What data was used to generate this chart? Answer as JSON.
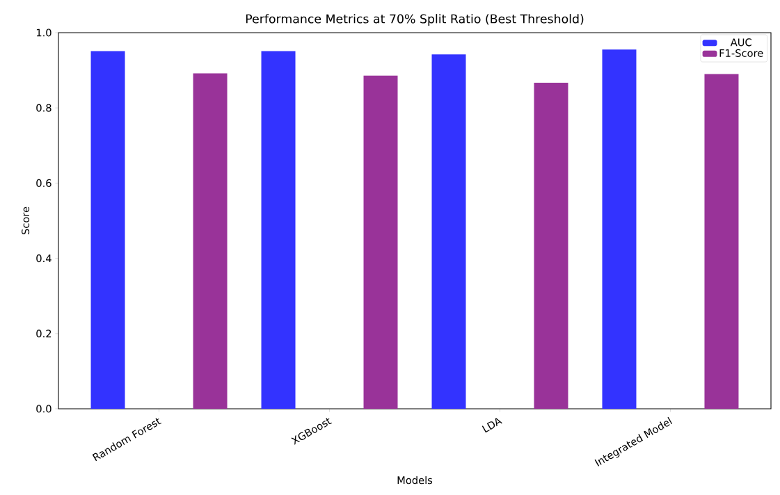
{
  "chart_data": {
    "type": "bar",
    "title": "Performance Metrics at 70% Split Ratio (Best Threshold)",
    "xlabel": "Models",
    "ylabel": "Score",
    "categories": [
      "Random Forest",
      "XGBoost",
      "LDA",
      "Integrated Model"
    ],
    "series": [
      {
        "name": "AUC",
        "color": "#3333ff",
        "values": [
          0.951,
          0.951,
          0.942,
          0.955
        ]
      },
      {
        "name": "F1-Score",
        "color": "#993399",
        "values": [
          0.892,
          0.886,
          0.867,
          0.89
        ]
      }
    ],
    "ylim": [
      0,
      1.0
    ],
    "yticks": [
      {
        "value": 0,
        "label": "0.0"
      },
      {
        "value": 0.2,
        "label": "0.2"
      },
      {
        "value": 0.4,
        "label": "0.4"
      },
      {
        "value": 0.6,
        "label": "0.6"
      },
      {
        "value": 0.8,
        "label": "0.8"
      },
      {
        "value": 1.0,
        "label": "1.0"
      }
    ],
    "legend": "top right"
  }
}
